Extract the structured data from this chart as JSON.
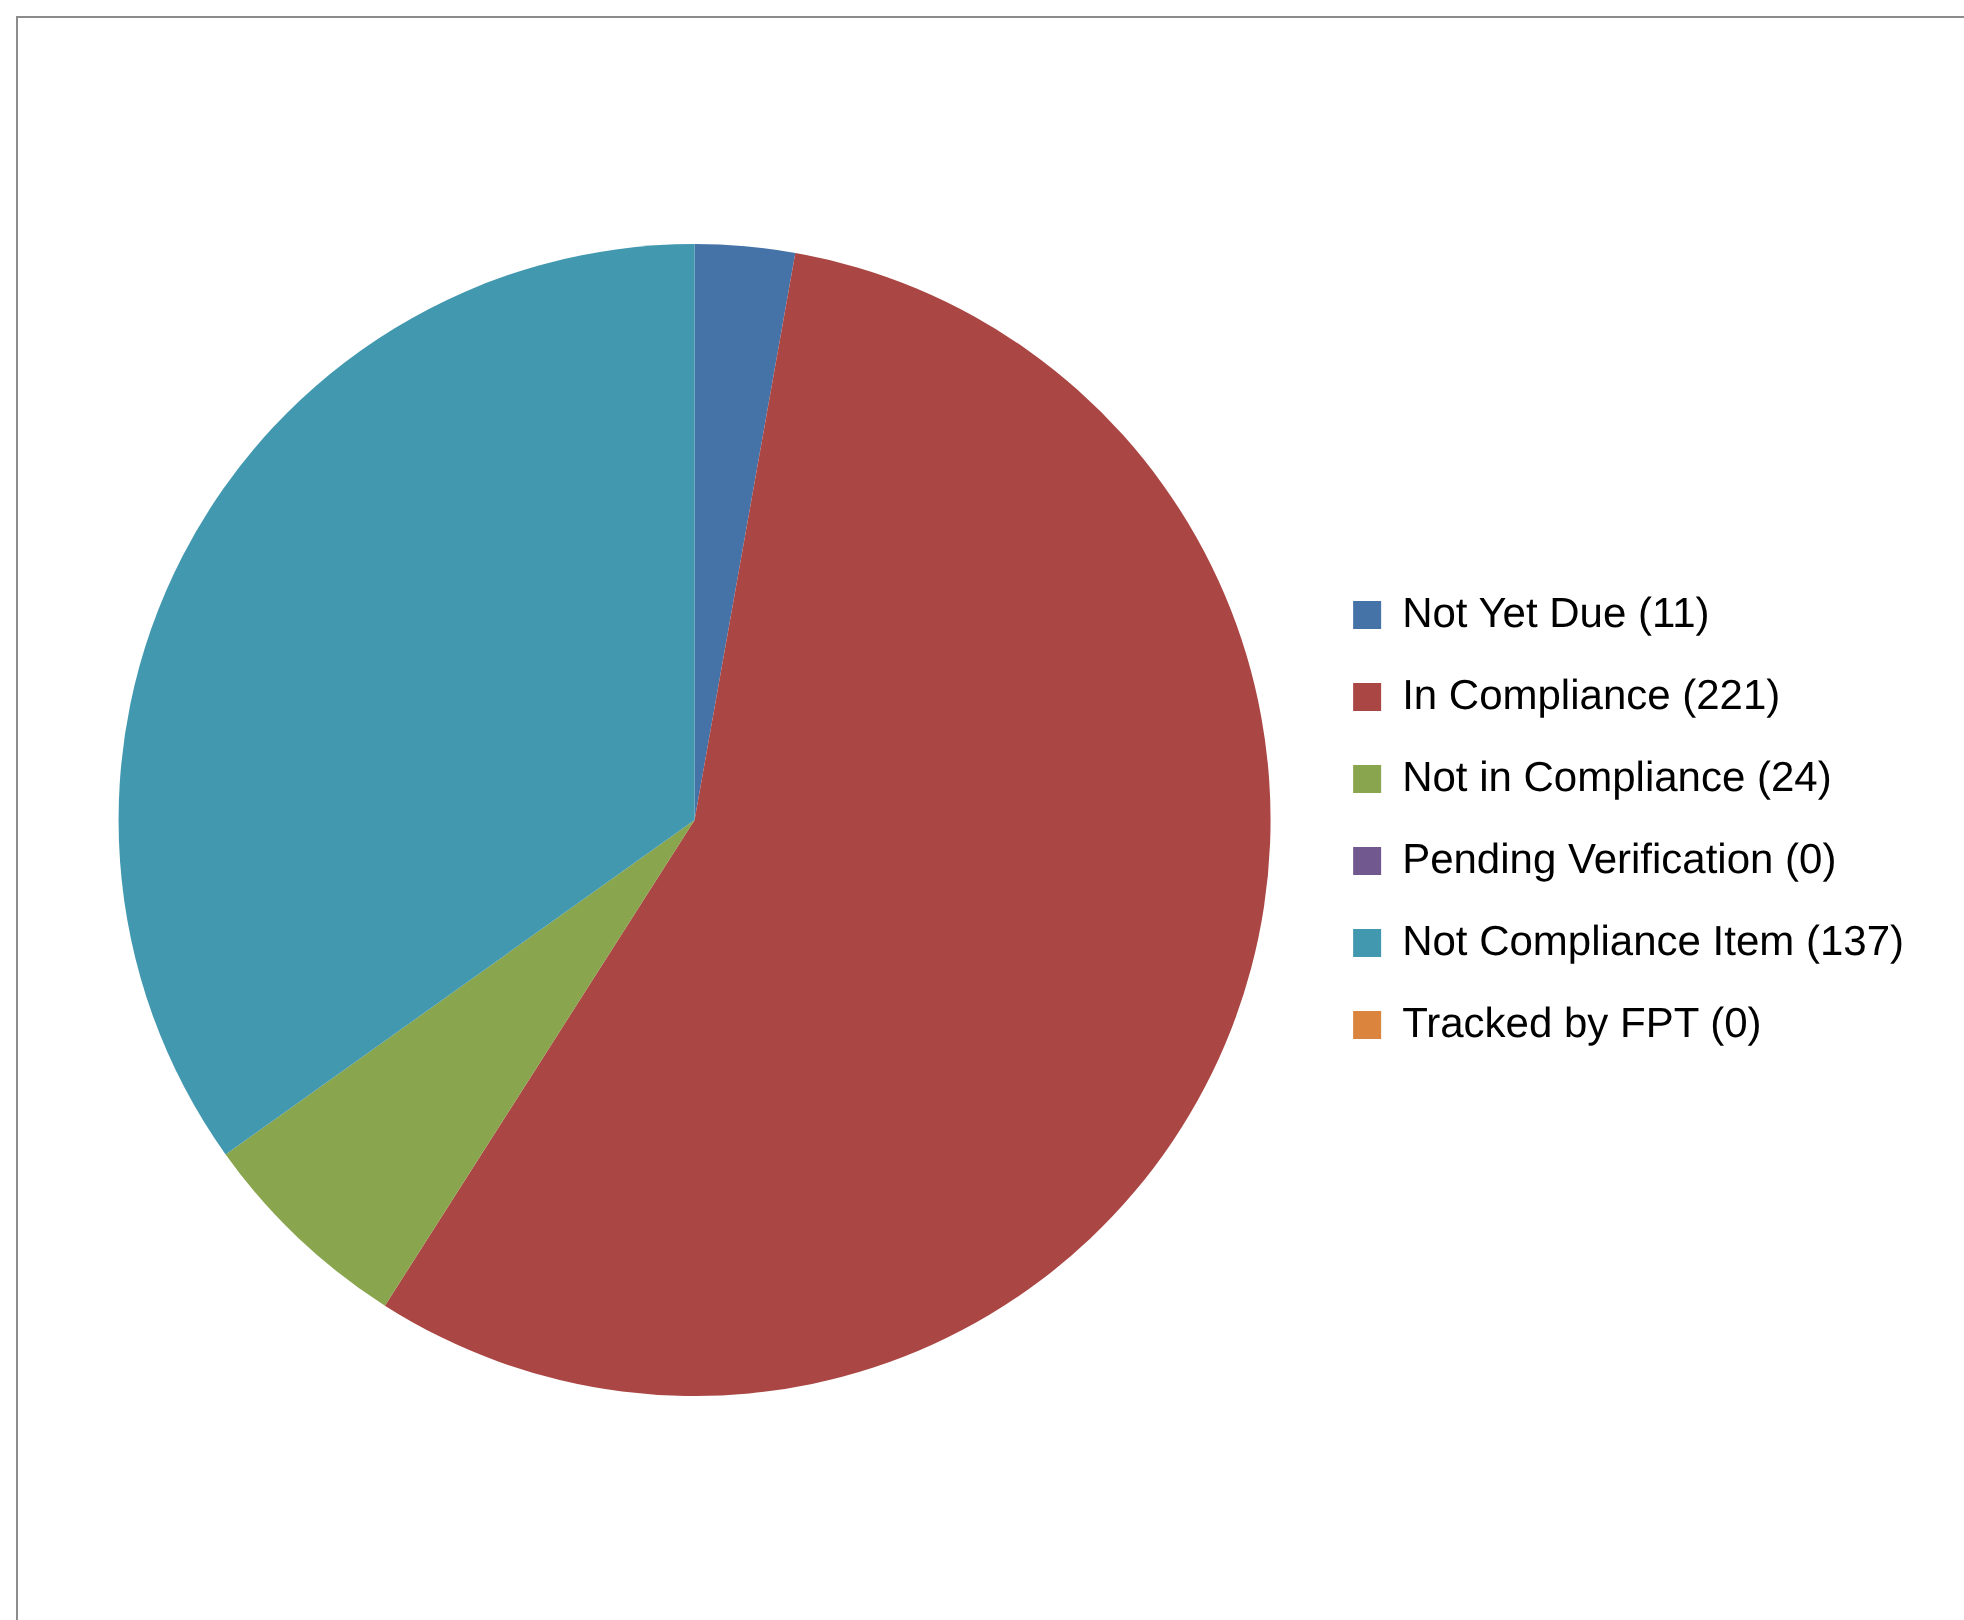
{
  "chart_data": {
    "type": "pie",
    "categories": [
      "Not Yet Due (11)",
      "In Compliance (221)",
      "Not in Compliance (24)",
      "Pending Verification (0)",
      "Not Compliance Item (137)",
      "Tracked by FPT (0)"
    ],
    "values": [
      11,
      221,
      24,
      0,
      137,
      0
    ],
    "colors": [
      "#4572a7",
      "#aa4643",
      "#89a54e",
      "#71588f",
      "#4198af",
      "#db843d"
    ],
    "legend": "right"
  }
}
